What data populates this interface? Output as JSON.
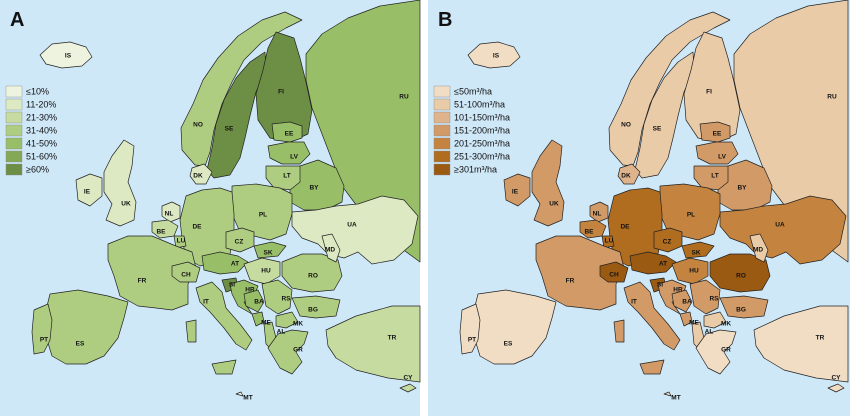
{
  "panels": [
    {
      "letter": "A",
      "sea": "#cfe8f8",
      "legend": {
        "items": [
          {
            "label": "≤10%",
            "color": "#eef3e0"
          },
          {
            "label": "11-20%",
            "color": "#dde9c2"
          },
          {
            "label": "21-30%",
            "color": "#c6dba0"
          },
          {
            "label": "31-40%",
            "color": "#afcd81"
          },
          {
            "label": "41-50%",
            "color": "#98bf67"
          },
          {
            "label": "51-60%",
            "color": "#85a857"
          },
          {
            "label": "≥60%",
            "color": "#6d8f45"
          }
        ]
      },
      "classes": {
        "IS": 0,
        "NO": 3,
        "SE": 6,
        "FI": 6,
        "RU": 4,
        "EE": 4,
        "LV": 4,
        "LT": 3,
        "BY": 4,
        "UA": 1,
        "PL": 3,
        "DE": 3,
        "DK": 1,
        "IE": 1,
        "UK": 1,
        "NL": 1,
        "BE": 2,
        "LU": 3,
        "FR": 3,
        "ES": 3,
        "PT": 3,
        "CH": 3,
        "AT": 4,
        "CZ": 3,
        "SK": 4,
        "HU": 2,
        "SI": 6,
        "HR": 4,
        "BA": 4,
        "RS": 3,
        "ME": 4,
        "AL": 3,
        "MK": 3,
        "GR": 3,
        "BG": 3,
        "RO": 3,
        "MD": 1,
        "IT": 3,
        "TR": 2,
        "CY": 2,
        "MT": 0
      }
    },
    {
      "letter": "B",
      "sea": "#cfe8f8",
      "legend": {
        "items": [
          {
            "label": "≤50m³/ha",
            "color": "#f1dcc4"
          },
          {
            "label": "51-100m³/ha",
            "color": "#eacba8"
          },
          {
            "label": "101-150m³/ha",
            "color": "#dfb38b"
          },
          {
            "label": "151-200m³/ha",
            "color": "#d29a67"
          },
          {
            "label": "201-250m³/ha",
            "color": "#c4843f"
          },
          {
            "label": "251-300m³/ha",
            "color": "#b06d1f"
          },
          {
            "label": "≥301m³/ha",
            "color": "#9a5a12"
          }
        ]
      },
      "classes": {
        "IS": 0,
        "NO": 1,
        "SE": 1,
        "FI": 1,
        "RU": 1,
        "EE": 3,
        "LV": 3,
        "LT": 3,
        "BY": 3,
        "UA": 4,
        "PL": 4,
        "DE": 5,
        "DK": 2,
        "IE": 3,
        "UK": 3,
        "NL": 3,
        "BE": 4,
        "LU": 5,
        "FR": 3,
        "ES": 0,
        "PT": 0,
        "CH": 6,
        "AT": 6,
        "CZ": 5,
        "SK": 5,
        "HU": 4,
        "SI": 6,
        "HR": 3,
        "BA": 3,
        "RS": 3,
        "ME": 3,
        "AL": 1,
        "MK": 1,
        "GR": 0,
        "BG": 3,
        "RO": 6,
        "MD": 1,
        "IT": 3,
        "TR": 0,
        "CY": 0,
        "MT": 0
      }
    }
  ],
  "countries": [
    {
      "code": "IS"
    },
    {
      "code": "NO"
    },
    {
      "code": "SE"
    },
    {
      "code": "FI"
    },
    {
      "code": "RU"
    },
    {
      "code": "EE"
    },
    {
      "code": "LV"
    },
    {
      "code": "LT"
    },
    {
      "code": "BY"
    },
    {
      "code": "UA"
    },
    {
      "code": "PL"
    },
    {
      "code": "DE"
    },
    {
      "code": "DK"
    },
    {
      "code": "IE"
    },
    {
      "code": "UK"
    },
    {
      "code": "NL"
    },
    {
      "code": "BE"
    },
    {
      "code": "LU"
    },
    {
      "code": "FR"
    },
    {
      "code": "ES"
    },
    {
      "code": "PT"
    },
    {
      "code": "CH"
    },
    {
      "code": "AT"
    },
    {
      "code": "CZ"
    },
    {
      "code": "SK"
    },
    {
      "code": "HU"
    },
    {
      "code": "SI"
    },
    {
      "code": "HR"
    },
    {
      "code": "BA"
    },
    {
      "code": "RS"
    },
    {
      "code": "ME"
    },
    {
      "code": "AL"
    },
    {
      "code": "MK"
    },
    {
      "code": "GR"
    },
    {
      "code": "BG"
    },
    {
      "code": "RO"
    },
    {
      "code": "MD"
    },
    {
      "code": "IT"
    },
    {
      "code": "TR"
    },
    {
      "code": "CY"
    },
    {
      "code": "MT"
    }
  ]
}
